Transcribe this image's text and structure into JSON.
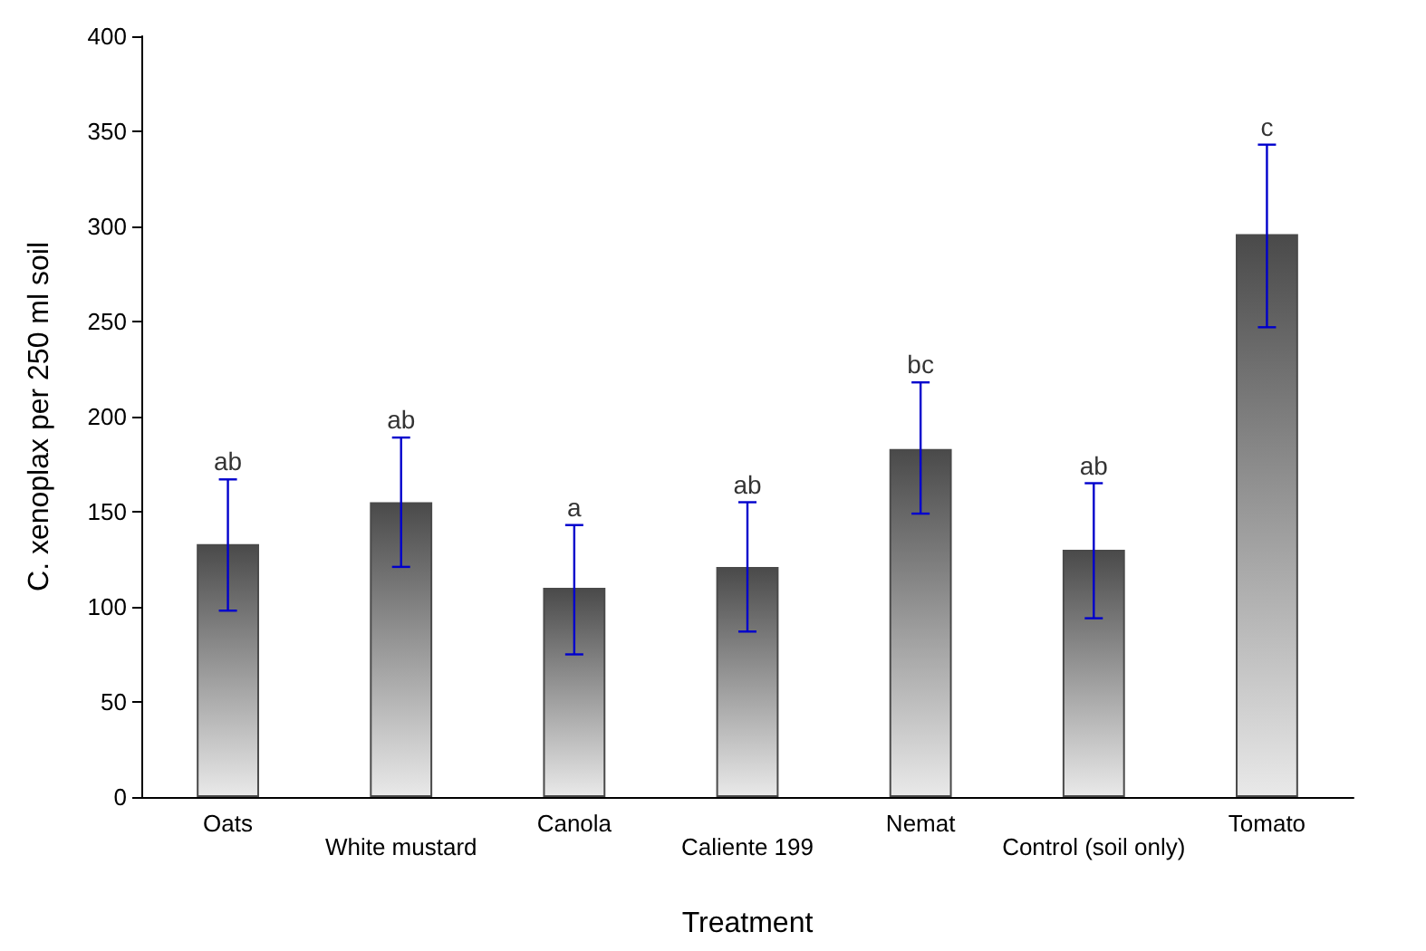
{
  "chart_data": {
    "type": "bar",
    "xlabel": "Treatment",
    "ylabel": "C. xenoplax per 250 ml soil",
    "categories": [
      "Oats",
      "White mustard",
      "Canola",
      "Caliente 199",
      "Nemat",
      "Control (soil only)",
      "Tomato"
    ],
    "series": [
      {
        "color": "#4a4a4a",
        "values": [
          133,
          155,
          110,
          121,
          183,
          130,
          296
        ],
        "errors": [
          [
            98,
            167
          ],
          [
            121,
            189
          ],
          [
            75,
            143
          ],
          [
            87,
            155
          ],
          [
            149,
            218
          ],
          [
            94,
            165
          ],
          [
            247,
            343
          ]
        ]
      }
    ],
    "ylim": [
      0,
      400
    ],
    "yticks": [
      0,
      50,
      100,
      150,
      200,
      250,
      300,
      350,
      400
    ],
    "grid": false,
    "annotations": [
      {
        "text": "ab",
        "x": "Oats",
        "y": 167
      },
      {
        "text": "ab",
        "x": "White mustard",
        "y": 189
      },
      {
        "text": "a",
        "x": "Canola",
        "y": 143
      },
      {
        "text": "ab",
        "x": "Caliente 199",
        "y": 155
      },
      {
        "text": "bc",
        "x": "Nemat",
        "y": 218
      },
      {
        "text": "ab",
        "x": "Control (soil only)",
        "y": 165
      },
      {
        "text": "c",
        "x": "Tomato",
        "y": 343
      }
    ]
  }
}
